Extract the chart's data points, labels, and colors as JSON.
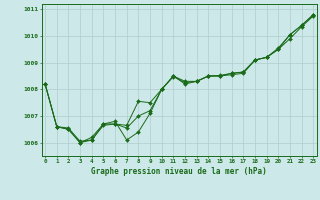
{
  "x": [
    0,
    1,
    2,
    3,
    4,
    5,
    6,
    7,
    8,
    9,
    10,
    11,
    12,
    13,
    14,
    15,
    16,
    17,
    18,
    19,
    20,
    21,
    22,
    23
  ],
  "series1": [
    1008.2,
    1006.6,
    1006.5,
    1006.0,
    1006.1,
    1006.65,
    1006.7,
    1006.65,
    1007.55,
    1007.5,
    1008.0,
    1008.5,
    1008.3,
    1008.3,
    1008.5,
    1008.5,
    1008.55,
    1008.6,
    1009.1,
    1009.2,
    1009.5,
    1009.9,
    1010.35,
    1010.75
  ],
  "series2": [
    1008.2,
    1006.6,
    1006.5,
    1006.0,
    1006.2,
    1006.7,
    1006.8,
    1006.1,
    1006.4,
    1007.1,
    1008.0,
    1008.5,
    1008.2,
    1008.3,
    1008.5,
    1008.5,
    1008.6,
    1008.65,
    1009.1,
    1009.2,
    1009.55,
    1010.05,
    1010.4,
    1010.8
  ],
  "series3": [
    1008.2,
    1006.6,
    1006.55,
    1006.05,
    1006.1,
    1006.7,
    1006.7,
    1006.55,
    1007.0,
    1007.2,
    1008.0,
    1008.48,
    1008.25,
    1008.3,
    1008.5,
    1008.52,
    1008.6,
    1008.65,
    1009.1,
    1009.2,
    1009.5,
    1010.05,
    1010.4,
    1010.8
  ],
  "ylim": [
    1005.5,
    1011.2
  ],
  "yticks": [
    1006,
    1007,
    1008,
    1009,
    1010,
    1011
  ],
  "xticks": [
    0,
    1,
    2,
    3,
    4,
    5,
    6,
    7,
    8,
    9,
    10,
    11,
    12,
    13,
    14,
    15,
    16,
    17,
    18,
    19,
    20,
    21,
    22,
    23
  ],
  "xlabel": "Graphe pression niveau de la mer (hPa)",
  "line_color": "#1a6b1a",
  "bg_color": "#cde8e8",
  "grid_color": "#b0cccc",
  "fig_bg": "#cde8e8"
}
